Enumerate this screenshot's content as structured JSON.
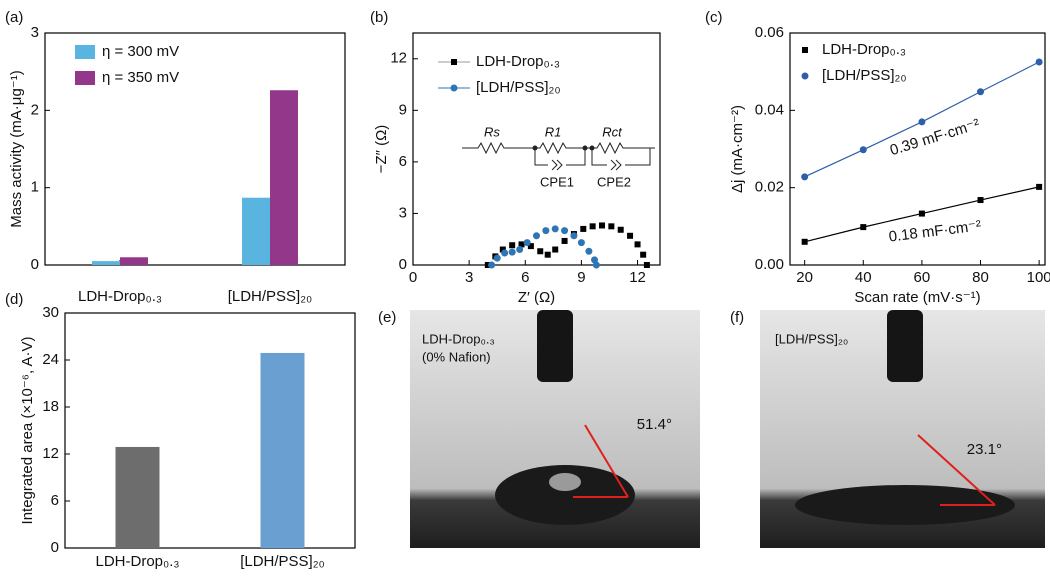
{
  "chart_data": [
    {
      "type": "bar",
      "panel": "(a)",
      "ylabel": "Mass activity (mA·μg⁻¹)",
      "categories": [
        "LDH-Drop₀.₃",
        "[LDH/PSS]₂₀"
      ],
      "series": [
        {
          "name": "η = 300 mV",
          "color": "#5ab4e0",
          "values": [
            0.05,
            0.87
          ]
        },
        {
          "name": "η = 350 mV",
          "color": "#93378a",
          "values": [
            0.1,
            2.26
          ]
        }
      ],
      "ylim": [
        0,
        3
      ],
      "yticks": [
        0,
        1,
        2,
        3
      ]
    },
    {
      "type": "scatter",
      "panel": "(b)",
      "xlabel": "Z′ (Ω)",
      "ylabel": "−Z″ (Ω)",
      "series": [
        {
          "name": "LDH-Drop₀.₃",
          "color": "#000000",
          "marker": "square",
          "x": [
            4.0,
            4.4,
            4.8,
            5.3,
            5.8,
            6.3,
            6.8,
            7.2,
            7.6,
            8.1,
            8.6,
            9.1,
            9.6,
            10.1,
            10.6,
            11.1,
            11.6,
            12.0,
            12.3,
            12.5
          ],
          "values": [
            0,
            0.5,
            0.9,
            1.15,
            1.2,
            1.1,
            0.8,
            0.6,
            0.9,
            1.4,
            1.8,
            2.1,
            2.25,
            2.3,
            2.25,
            2.05,
            1.7,
            1.2,
            0.6,
            0
          ]
        },
        {
          "name": "[LDH/PSS]₂₀",
          "color": "#2e75b6",
          "marker": "circle",
          "x": [
            4.2,
            4.5,
            4.9,
            5.3,
            5.7,
            6.1,
            6.6,
            7.1,
            7.6,
            8.1,
            8.6,
            9.0,
            9.4,
            9.7,
            9.8
          ],
          "values": [
            0,
            0.4,
            0.7,
            0.75,
            0.9,
            1.3,
            1.7,
            2.0,
            2.1,
            2.0,
            1.7,
            1.3,
            0.8,
            0.3,
            0
          ]
        }
      ],
      "circuit": [
        "Rs",
        "R1",
        "Rct",
        "CPE1",
        "CPE2"
      ],
      "xlim": [
        0,
        13.2
      ],
      "xticks": [
        0,
        3,
        6,
        9,
        12
      ],
      "ylim": [
        0,
        13.5
      ],
      "yticks": [
        0,
        3,
        6,
        9,
        12
      ]
    },
    {
      "type": "line",
      "panel": "(c)",
      "xlabel": "Scan rate (mV·s⁻¹)",
      "ylabel": "Δj (mA·cm⁻²)",
      "x": [
        20,
        40,
        60,
        80,
        100
      ],
      "series": [
        {
          "name": "LDH-Drop₀.₃",
          "color": "#000000",
          "marker": "square",
          "values": [
            0.006,
            0.0098,
            0.0133,
            0.0168,
            0.0202
          ]
        },
        {
          "name": "[LDH/PSS]₂₀",
          "color": "#2e5fa8",
          "marker": "circle",
          "values": [
            0.0228,
            0.0298,
            0.037,
            0.0448,
            0.0525
          ]
        }
      ],
      "annotations": [
        "0.39 mF·cm⁻²",
        "0.18 mF·cm⁻²"
      ],
      "xlim": [
        15,
        102
      ],
      "xticks": [
        20,
        40,
        60,
        80,
        100
      ],
      "ylim": [
        0,
        0.06
      ],
      "yticks": [
        {
          "value": 0,
          "label": "0.00"
        },
        0.02,
        0.04,
        0.06
      ]
    },
    {
      "type": "bar",
      "panel": "(d)",
      "ylabel": "Integrated area (×10⁻⁶, A·V)",
      "categories": [
        "LDH-Drop₀.₃",
        "[LDH/PSS]₂₀"
      ],
      "values": [
        12.9,
        24.9
      ],
      "colors": [
        "#6d6d6d",
        "#6a9fd1"
      ],
      "ylim": [
        0,
        30
      ],
      "yticks": [
        0,
        6,
        12,
        18,
        24,
        30
      ]
    }
  ],
  "photos": [
    {
      "panel": "(e)",
      "label": "LDH-Drop₀.₃",
      "note": "(0% Nafion)",
      "angle": "51.4°"
    },
    {
      "panel": "(f)",
      "label": "[LDH/PSS]₂₀",
      "angle": "23.1°"
    }
  ]
}
